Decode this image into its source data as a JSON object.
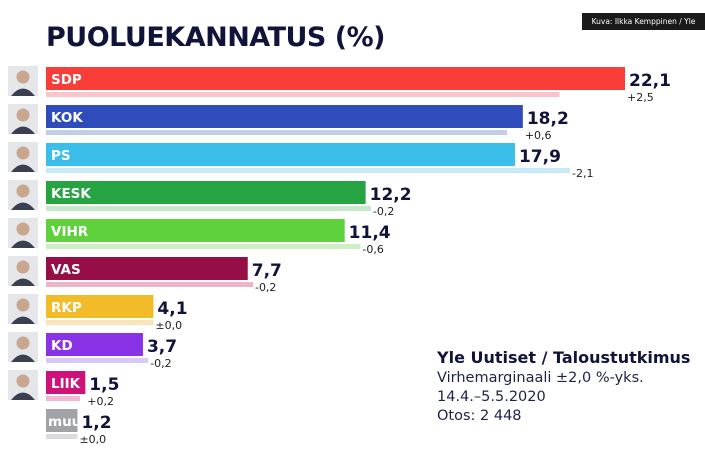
{
  "credit": "Kuva: Ilkka Kemppinen / Yle",
  "chart_data": {
    "type": "bar",
    "orientation": "horizontal",
    "title": "PUOLUEKANNATUS (%)",
    "categories": [
      "SDP",
      "KOK",
      "PS",
      "KESK",
      "VIHR",
      "VAS",
      "RKP",
      "KD",
      "LIIK",
      "muut"
    ],
    "values": [
      22.1,
      18.2,
      17.9,
      12.2,
      11.4,
      7.7,
      4.1,
      3.7,
      1.5,
      1.2
    ],
    "value_labels": [
      "22,1",
      "18,2",
      "17,9",
      "12,2",
      "11,4",
      "7,7",
      "4,1",
      "3,7",
      "1,5",
      "1,2"
    ],
    "changes": [
      2.5,
      0.6,
      -2.1,
      -0.2,
      -0.6,
      -0.2,
      0.0,
      -0.2,
      0.2,
      0.0
    ],
    "change_labels": [
      "+2,5",
      "+0,6",
      "-2,1",
      "-0,2",
      "-0,6",
      "-0,2",
      "±0,0",
      "-0,2",
      "+0,2",
      "±0,0"
    ],
    "colors": [
      "#fb3d3a",
      "#2f4dba",
      "#3cbeeb",
      "#25a441",
      "#5ed13c",
      "#960e45",
      "#f1bc27",
      "#8a33e6",
      "#d1117a",
      "#a0a3a7"
    ],
    "light_colors": [
      "#fbc3cc",
      "#c3cde8",
      "#c6ebf7",
      "#c7e8cb",
      "#cdf1c4",
      "#eab6c8",
      "#f8e6b7",
      "#dcc8f4",
      "#f3b6d4",
      "#d9dbde"
    ],
    "grid": false,
    "legend": "none"
  },
  "source": {
    "title": "Yle Uutiset / Taloustutkimus",
    "lines": [
      "Virhemarginaali ±2,0 %-yks.",
      "14.4.–5.5.2020",
      "Otos: 2 448"
    ]
  }
}
